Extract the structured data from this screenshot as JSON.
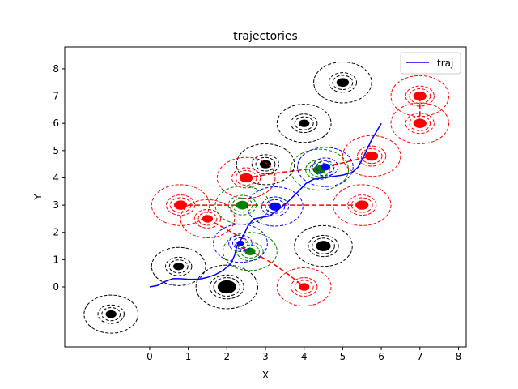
{
  "chart_data": {
    "type": "scatter",
    "title": "trajectories",
    "xlabel": "X",
    "ylabel": "Y",
    "xlim": [
      -2.2,
      8.2
    ],
    "ylim": [
      -2.2,
      8.8
    ],
    "xticks": [
      0,
      1,
      2,
      3,
      4,
      5,
      6,
      7,
      8
    ],
    "yticks": [
      0,
      1,
      2,
      3,
      4,
      5,
      6,
      7,
      8
    ],
    "grid": false,
    "legend": {
      "position": "top-right",
      "entries": [
        {
          "label": "traj",
          "color": "#0000ff",
          "style": "line"
        }
      ]
    },
    "colors": {
      "black": "#000000",
      "red": "#ff0000",
      "green": "#008000",
      "blue": "#0000ff"
    },
    "trajectory": {
      "name": "traj",
      "color": "#0000ff",
      "points": [
        [
          0,
          0
        ],
        [
          0.2,
          0.05
        ],
        [
          0.4,
          0.2
        ],
        [
          0.6,
          0.3
        ],
        [
          0.8,
          0.3
        ],
        [
          1.0,
          0.28
        ],
        [
          1.2,
          0.28
        ],
        [
          1.35,
          0.3
        ],
        [
          1.5,
          0.35
        ],
        [
          1.7,
          0.45
        ],
        [
          1.9,
          0.6
        ],
        [
          2.1,
          0.85
        ],
        [
          2.2,
          1.15
        ],
        [
          2.25,
          1.45
        ],
        [
          2.3,
          1.6
        ],
        [
          2.35,
          1.7
        ],
        [
          2.45,
          1.95
        ],
        [
          2.55,
          2.25
        ],
        [
          2.7,
          2.5
        ],
        [
          2.9,
          2.55
        ],
        [
          3.1,
          2.6
        ],
        [
          3.35,
          2.85
        ],
        [
          3.6,
          3.15
        ],
        [
          3.85,
          3.5
        ],
        [
          4.05,
          3.8
        ],
        [
          4.25,
          3.95
        ],
        [
          4.5,
          4.0
        ],
        [
          4.75,
          4.05
        ],
        [
          5.0,
          4.1
        ],
        [
          5.25,
          4.2
        ],
        [
          5.4,
          4.4
        ],
        [
          5.55,
          4.8
        ],
        [
          5.75,
          5.4
        ],
        [
          6.0,
          6.0
        ]
      ]
    },
    "red_paths": [
      {
        "color": "#ff0000",
        "points": [
          [
            2.2,
            1.55
          ],
          [
            2.7,
            1.25
          ],
          [
            3.2,
            0.85
          ],
          [
            3.6,
            0.45
          ],
          [
            4.0,
            0.0
          ]
        ]
      },
      {
        "color": "#ff0000",
        "points": [
          [
            1.5,
            2.5
          ],
          [
            2.0,
            2.1
          ],
          [
            2.5,
            1.7
          ]
        ]
      },
      {
        "color": "#ff0000",
        "points": [
          [
            0.8,
            3.0
          ],
          [
            1.6,
            3.0
          ],
          [
            2.5,
            3.0
          ],
          [
            3.3,
            3.0
          ],
          [
            4.1,
            3.0
          ],
          [
            4.8,
            3.0
          ],
          [
            5.5,
            3.0
          ]
        ]
      },
      {
        "color": "#ff0000",
        "points": [
          [
            2.5,
            4.0
          ],
          [
            3.4,
            4.2
          ],
          [
            4.3,
            4.35
          ],
          [
            5.0,
            4.55
          ],
          [
            5.75,
            4.8
          ]
        ]
      },
      {
        "color": "#ff0000",
        "points": [
          [
            7.0,
            6.0
          ],
          [
            7.0,
            6.5
          ],
          [
            7.0,
            7.0
          ]
        ]
      }
    ],
    "obstacles": [
      {
        "color": "#000000",
        "x": -1.0,
        "y": -1.0,
        "r": 0.7,
        "dot": 0.14
      },
      {
        "color": "#000000",
        "x": 0.75,
        "y": 0.75,
        "r": 0.7,
        "dot": 0.14
      },
      {
        "color": "#000000",
        "x": 2.0,
        "y": 0.0,
        "r": 0.8,
        "dot": 0.24
      },
      {
        "color": "#000000",
        "x": 3.0,
        "y": 4.5,
        "r": 0.75,
        "dot": 0.15
      },
      {
        "color": "#000000",
        "x": 4.0,
        "y": 6.0,
        "r": 0.7,
        "dot": 0.14
      },
      {
        "color": "#000000",
        "x": 4.5,
        "y": 1.5,
        "r": 0.75,
        "dot": 0.19
      },
      {
        "color": "#000000",
        "x": 5.0,
        "y": 7.5,
        "r": 0.75,
        "dot": 0.16
      },
      {
        "color": "#ff0000",
        "x": 0.8,
        "y": 3.0,
        "r": 0.75,
        "dot": 0.17
      },
      {
        "color": "#ff0000",
        "x": 1.5,
        "y": 2.5,
        "r": 0.7,
        "dot": 0.14
      },
      {
        "color": "#ff0000",
        "x": 2.5,
        "y": 4.0,
        "r": 0.75,
        "dot": 0.17
      },
      {
        "color": "#ff0000",
        "x": 4.0,
        "y": 0.0,
        "r": 0.7,
        "dot": 0.14
      },
      {
        "color": "#ff0000",
        "x": 5.5,
        "y": 3.0,
        "r": 0.75,
        "dot": 0.17
      },
      {
        "color": "#ff0000",
        "x": 5.75,
        "y": 4.8,
        "r": 0.75,
        "dot": 0.17
      },
      {
        "color": "#ff0000",
        "x": 7.0,
        "y": 7.0,
        "r": 0.75,
        "dot": 0.17
      },
      {
        "color": "#ff0000",
        "x": 7.0,
        "y": 6.0,
        "r": 0.75,
        "dot": 0.17
      },
      {
        "color": "#008000",
        "x": 2.4,
        "y": 3.0,
        "r": 0.7,
        "dot": 0.16
      },
      {
        "color": "#008000",
        "x": 2.6,
        "y": 1.3,
        "r": 0.7,
        "dot": 0.14
      },
      {
        "color": "#008000",
        "x": 4.4,
        "y": 4.3,
        "r": 0.75,
        "dot": 0.16
      },
      {
        "color": "#0000ff",
        "x": 3.25,
        "y": 2.95,
        "r": 0.72,
        "dot": 0.15
      },
      {
        "color": "#0000ff",
        "x": 2.35,
        "y": 1.6,
        "r": 0.7,
        "dot": 0.1
      },
      {
        "color": "#0000ff",
        "x": 4.55,
        "y": 4.4,
        "r": 0.72,
        "dot": 0.13
      }
    ]
  }
}
